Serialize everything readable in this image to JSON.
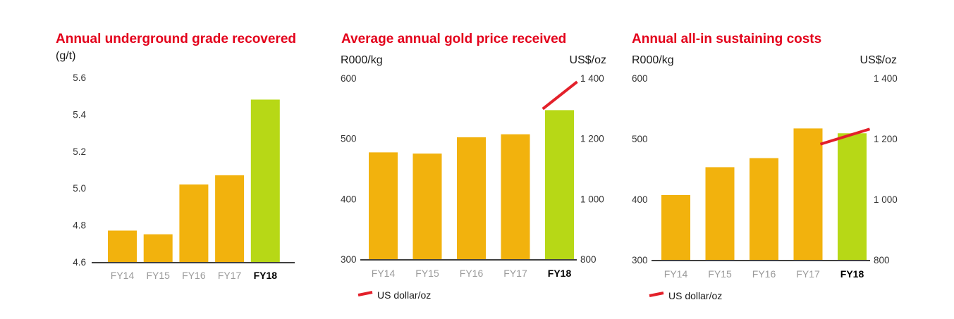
{
  "colors": {
    "title": "#e3001b",
    "bar": "#f2b20d",
    "bar_highlight": "#b7d816",
    "line": "#e3202a",
    "axis": "#000000"
  },
  "chart_data": [
    {
      "type": "bar",
      "title": "Annual underground grade recovered",
      "ylabel": "(g/t)",
      "categories": [
        "FY14",
        "FY15",
        "FY16",
        "FY17",
        "FY18"
      ],
      "highlight_category": "FY18",
      "values": [
        4.77,
        4.75,
        5.02,
        5.07,
        5.48
      ],
      "ylim": [
        4.6,
        5.6
      ],
      "yticks": [
        "5.6",
        "5.4",
        "5.2",
        "5.0",
        "4.8",
        "4.6"
      ],
      "ytick_values": [
        5.6,
        5.4,
        5.2,
        5.0,
        4.8,
        4.6
      ]
    },
    {
      "type": "bar",
      "title": "Average annual gold price received",
      "ylabel": "R000/kg",
      "y2label": "US$/oz",
      "categories": [
        "FY14",
        "FY15",
        "FY16",
        "FY17",
        "FY18"
      ],
      "highlight_category": "FY18",
      "values": [
        477,
        475,
        502,
        507,
        547
      ],
      "ylim": [
        300,
        600
      ],
      "yticks": [
        "600",
        "500",
        "400",
        "300"
      ],
      "ytick_values": [
        600,
        500,
        400,
        300
      ],
      "y2lim": [
        800,
        1400
      ],
      "y2ticks": [
        "1 400",
        "1 200",
        "1 000",
        "800"
      ],
      "y2tick_values": [
        1400,
        1200,
        1000,
        800
      ],
      "series2": {
        "name": "US dollar/oz",
        "x_from": 3.62,
        "x_to": 4.4,
        "values": [
          1298,
          1388
        ]
      },
      "legend": "US dollar/oz"
    },
    {
      "type": "bar",
      "title": "Annual all-in sustaining costs",
      "ylabel": "R000/kg",
      "y2label": "US$/oz",
      "categories": [
        "FY14",
        "FY15",
        "FY16",
        "FY17",
        "FY18"
      ],
      "highlight_category": "FY18",
      "values": [
        407,
        453,
        468,
        517,
        509
      ],
      "ylim": [
        300,
        600
      ],
      "yticks": [
        "600",
        "500",
        "400",
        "300"
      ],
      "ytick_values": [
        600,
        500,
        400,
        300
      ],
      "y2lim": [
        800,
        1400
      ],
      "y2ticks": [
        "1 400",
        "1 200",
        "1 000",
        "800"
      ],
      "y2tick_values": [
        1400,
        1200,
        1000,
        800
      ],
      "series2": {
        "name": "US dollar/oz",
        "x_from": 3.28,
        "x_to": 4.4,
        "values": [
          1182,
          1232
        ]
      },
      "legend": "US dollar/oz"
    }
  ]
}
